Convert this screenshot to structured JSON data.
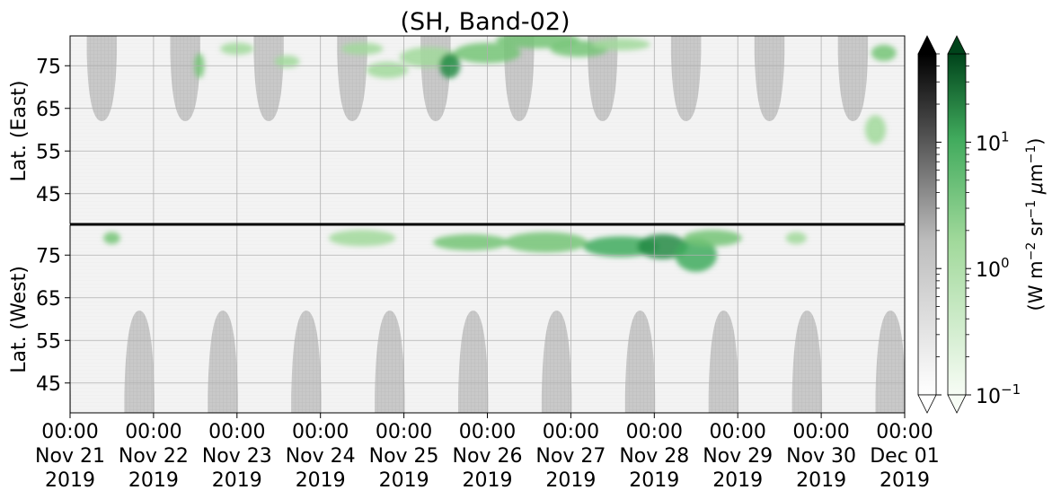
{
  "chart_data": {
    "type": "heatmap",
    "title": "(SH, Band-02)",
    "panels": [
      {
        "name": "east",
        "ylabel": "Lat. (East)",
        "ytick_labels": [
          "45",
          "55",
          "65",
          "75"
        ],
        "ylim": [
          38,
          82
        ]
      },
      {
        "name": "west",
        "ylabel": "Lat. (West)",
        "ytick_labels": [
          "75",
          "65",
          "55",
          "45"
        ],
        "ylim": [
          82,
          38
        ]
      }
    ],
    "x_ticks": [
      [
        "00:00",
        "Nov 21",
        "2019"
      ],
      [
        "00:00",
        "Nov 22",
        "2019"
      ],
      [
        "00:00",
        "Nov 23",
        "2019"
      ],
      [
        "00:00",
        "Nov 24",
        "2019"
      ],
      [
        "00:00",
        "Nov 25",
        "2019"
      ],
      [
        "00:00",
        "Nov 26",
        "2019"
      ],
      [
        "00:00",
        "Nov 27",
        "2019"
      ],
      [
        "00:00",
        "Nov 28",
        "2019"
      ],
      [
        "00:00",
        "Nov 29",
        "2019"
      ],
      [
        "00:00",
        "Nov 30",
        "2019"
      ],
      [
        "00:00",
        "Dec 01",
        "2019"
      ]
    ],
    "grid": true,
    "colorbar": {
      "label": "(W m$^{-2}$ sr$^{-1}$ $\\mu$m$^{-1}$)",
      "scale": "log",
      "range": [
        0.1,
        50
      ],
      "tick_labels": [
        "10",
        "10",
        "10"
      ],
      "tick_exponents": [
        "-1",
        "0",
        "1"
      ],
      "extend": "both",
      "colormaps": [
        "Greys",
        "Greens"
      ]
    },
    "daylight_masks": {
      "description_color": "#c8c8c8",
      "east_lowest_lat": 62,
      "west_lowest_lat": 62
    },
    "aurora_patches": [
      {
        "day": 1.55,
        "lat": 75,
        "dlat": 5,
        "dday": 0.12,
        "level": 0.6
      },
      {
        "day": 2.0,
        "lat": 79,
        "dlat": 2,
        "dday": 0.4,
        "level": 0.4
      },
      {
        "day": 2.6,
        "lat": 76,
        "dlat": 2,
        "dday": 0.3,
        "level": 0.4
      },
      {
        "day": 3.5,
        "lat": 79,
        "dlat": 2,
        "dday": 0.5,
        "level": 0.35
      },
      {
        "day": 3.8,
        "lat": 74,
        "dlat": 3,
        "dday": 0.5,
        "level": 0.35
      },
      {
        "day": 4.3,
        "lat": 77,
        "dlat": 4,
        "dday": 0.7,
        "level": 0.45
      },
      {
        "day": 4.55,
        "lat": 75,
        "dlat": 5,
        "dday": 0.25,
        "level": 0.85
      },
      {
        "day": 5.0,
        "lat": 78,
        "dlat": 4,
        "dday": 0.8,
        "level": 0.6
      },
      {
        "day": 5.6,
        "lat": 81,
        "dlat": 3,
        "dday": 1.0,
        "level": 0.55
      },
      {
        "day": 6.1,
        "lat": 79,
        "dlat": 3,
        "dday": 0.7,
        "level": 0.5
      },
      {
        "day": 6.6,
        "lat": 80,
        "dlat": 2,
        "dday": 0.7,
        "level": 0.45
      },
      {
        "day": 3.5,
        "lat": 79,
        "dlat": 3,
        "dday": 0.8,
        "level": 0.45,
        "west": true
      },
      {
        "day": 4.8,
        "lat": 78,
        "dlat": 3,
        "dday": 0.9,
        "level": 0.55,
        "west": true
      },
      {
        "day": 5.7,
        "lat": 78,
        "dlat": 4,
        "dday": 1.0,
        "level": 0.65,
        "west": true
      },
      {
        "day": 6.6,
        "lat": 77,
        "dlat": 4,
        "dday": 0.9,
        "level": 0.75,
        "west": true
      },
      {
        "day": 7.1,
        "lat": 77,
        "dlat": 5,
        "dday": 0.6,
        "level": 0.85,
        "west": true
      },
      {
        "day": 7.5,
        "lat": 75,
        "dlat": 7,
        "dday": 0.5,
        "level": 0.7,
        "west": true
      },
      {
        "day": 7.7,
        "lat": 79,
        "dlat": 3,
        "dday": 0.7,
        "level": 0.55,
        "west": true
      },
      {
        "day": 0.5,
        "lat": 79,
        "dlat": 2,
        "dday": 0.2,
        "level": 0.5,
        "west": true
      },
      {
        "day": 8.7,
        "lat": 79,
        "dlat": 2,
        "dday": 0.25,
        "level": 0.35,
        "west": true
      },
      {
        "day": 9.65,
        "lat": 60,
        "dlat": 6,
        "dday": 0.25,
        "level": 0.45
      },
      {
        "day": 9.75,
        "lat": 78,
        "dlat": 3,
        "dday": 0.3,
        "level": 0.5
      }
    ]
  }
}
